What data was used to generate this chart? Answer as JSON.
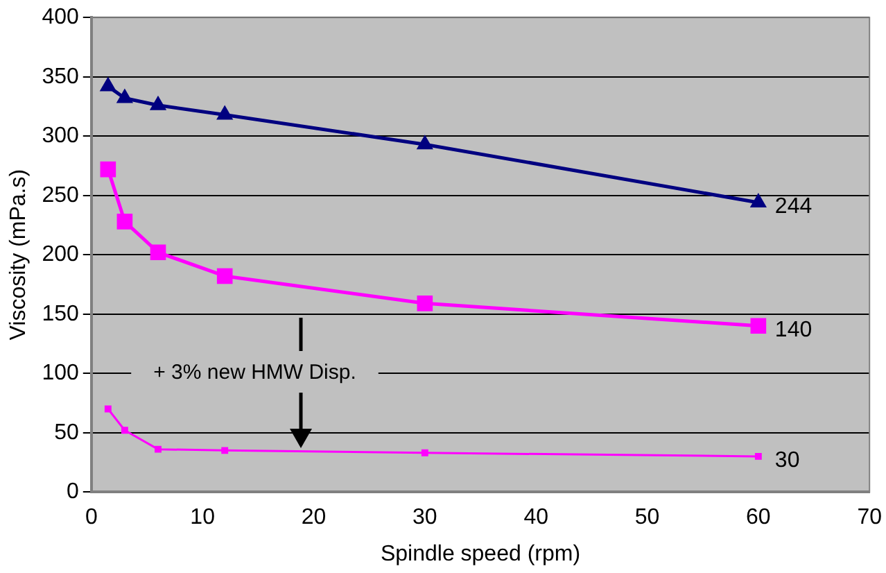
{
  "chart_data": {
    "type": "line",
    "xlabel": "Spindle speed (rpm)",
    "ylabel": "Viscosity (mPa.s)",
    "xlim": [
      0,
      70
    ],
    "xticks": [
      0,
      10,
      20,
      30,
      40,
      50,
      60,
      70
    ],
    "ylim": [
      0,
      400
    ],
    "yticks": [
      0,
      50,
      100,
      150,
      200,
      250,
      300,
      350,
      400
    ],
    "grid": "y",
    "legend": false,
    "line_style": "solid",
    "series": [
      {
        "color": "#000080",
        "marker": "triangle",
        "x": [
          1.5,
          3,
          6,
          12,
          30,
          60
        ],
        "values": [
          342,
          332,
          326,
          318,
          293,
          244
        ],
        "value_labels": [
          null,
          null,
          null,
          null,
          null,
          "244"
        ]
      },
      {
        "color": "#ff00ff",
        "marker": "square",
        "x": [
          1.5,
          3,
          6,
          12,
          30,
          60
        ],
        "values": [
          272,
          228,
          202,
          182,
          159,
          140
        ],
        "value_labels": [
          null,
          null,
          null,
          null,
          null,
          "140"
        ]
      },
      {
        "color": "#ff00ff",
        "marker": "square",
        "x": [
          1.5,
          3,
          6,
          12,
          30,
          60
        ],
        "values": [
          70,
          52,
          36,
          35,
          33,
          30
        ],
        "value_labels": [
          null,
          null,
          null,
          null,
          null,
          "30"
        ]
      }
    ],
    "annotations": [
      "+ 3% new HMW Disp."
    ]
  }
}
